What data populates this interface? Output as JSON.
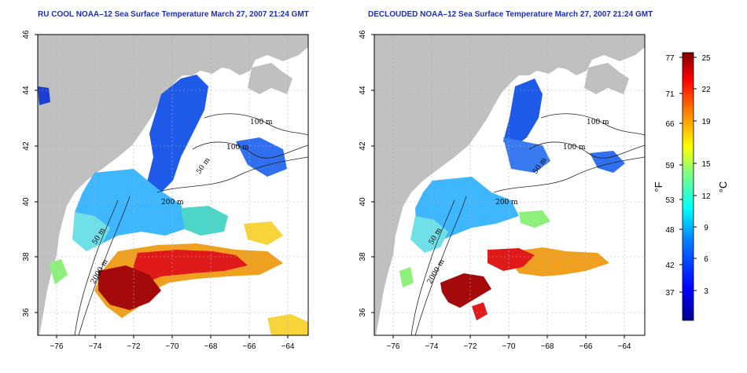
{
  "titles": {
    "left": "RU COOL NOAA–12 Sea Surface Temperature March 27, 2007 21:24 GMT",
    "right": "DECLOUDED NOAA–12 Sea Surface Temperature March 27, 2007 21:24 GMT"
  },
  "axes": {
    "lat_ticks": [
      "46",
      "44",
      "42",
      "40",
      "38",
      "36"
    ],
    "lon_ticks": [
      "−76",
      "−74",
      "−72",
      "−70",
      "−68",
      "−66",
      "−64"
    ]
  },
  "contour_labels": {
    "m100a": "100 m",
    "m100b": "100 m",
    "m50": "50 m",
    "m200": "200 m",
    "m50b": "50 m",
    "m2000": "2000 m"
  },
  "colorbar": {
    "fahrenheit_label": "°F",
    "celsius_label": "°C",
    "fahrenheit_ticks": [
      "77",
      "71",
      "66",
      "59",
      "53",
      "48",
      "42",
      "37"
    ],
    "celsius_ticks": [
      "25",
      "22",
      "19",
      "15",
      "12",
      "9",
      "6",
      "3"
    ]
  },
  "colors": {
    "land": "#c0c0c0",
    "grid": "#b0b0b0",
    "title": "#1c2fb0"
  }
}
